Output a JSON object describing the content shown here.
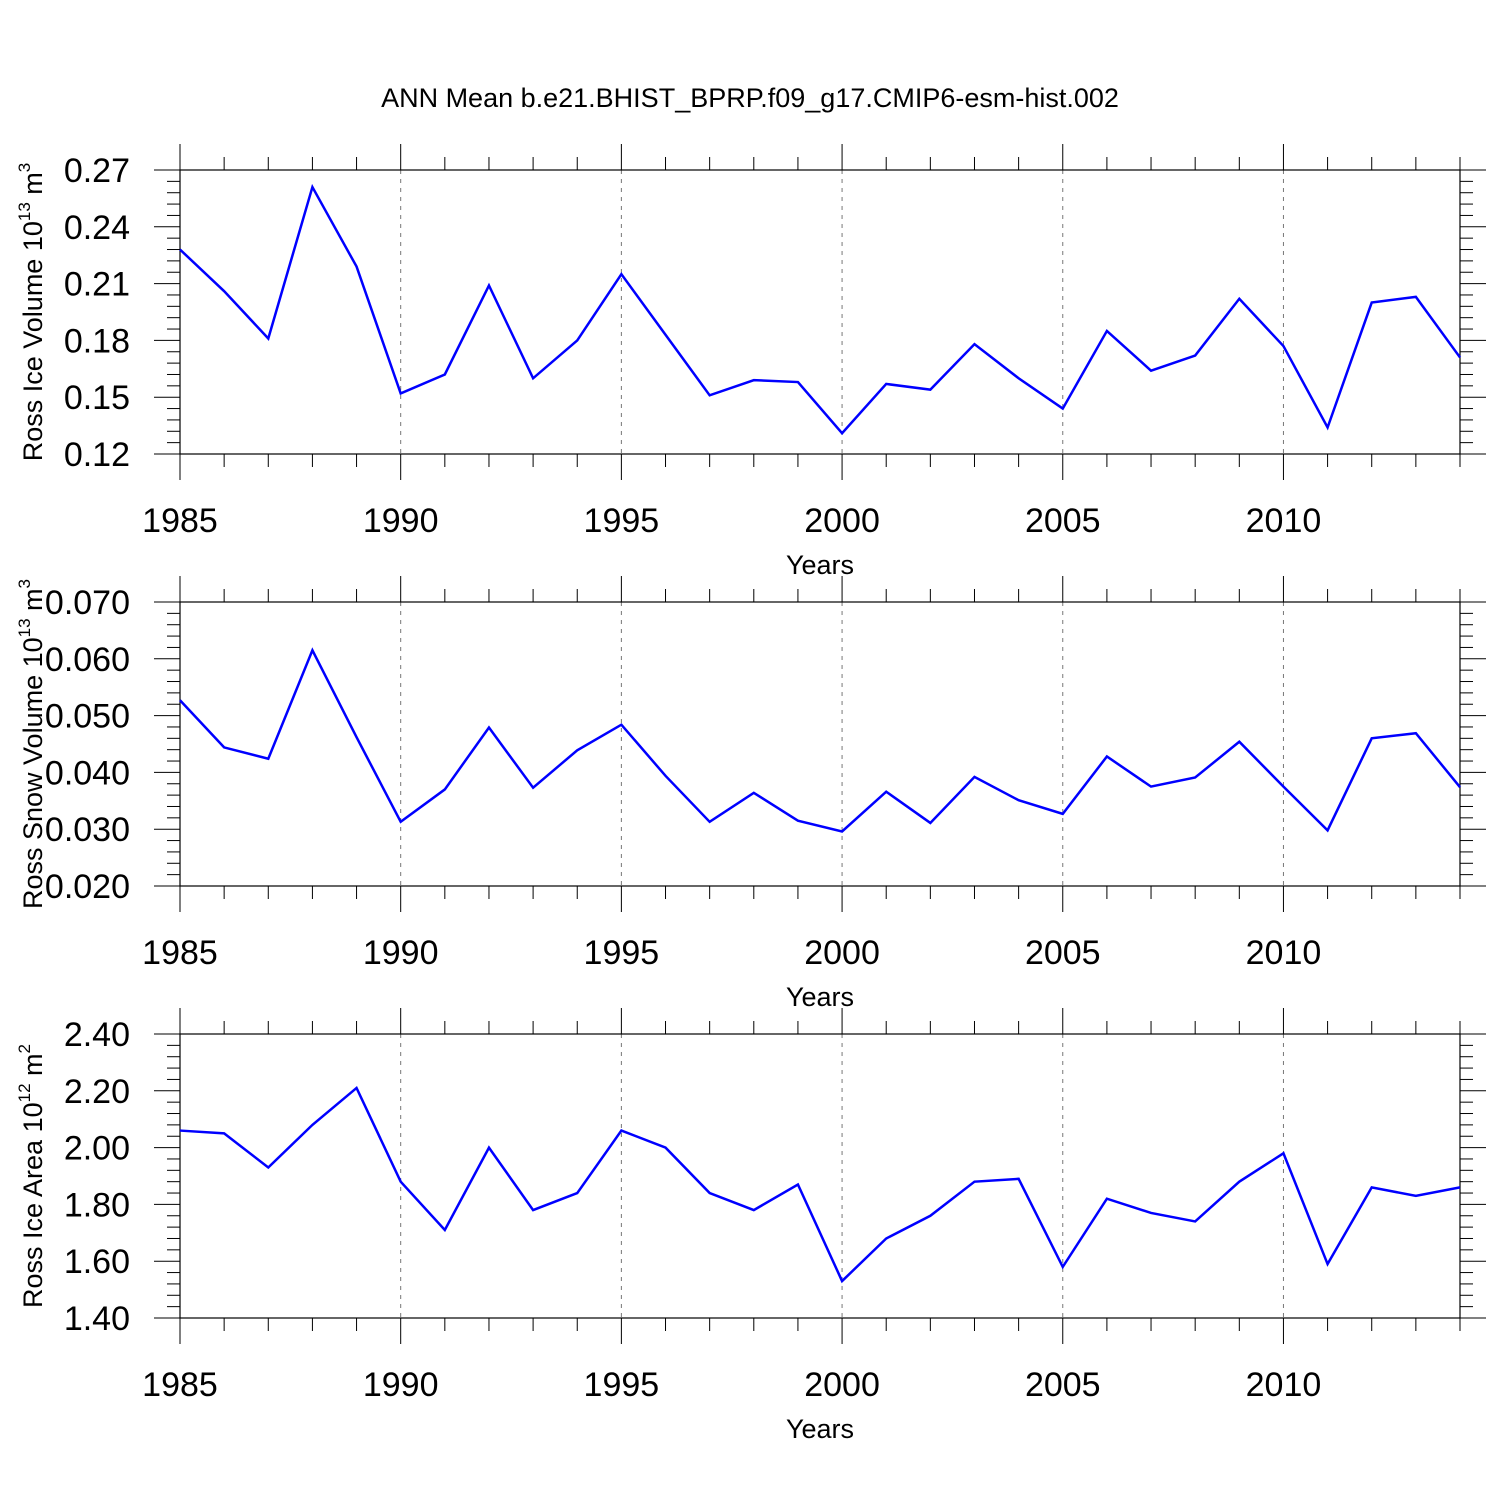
{
  "figure_title": "ANN Mean b.e21.BHIST_BPRP.f09_g17.CMIP6-esm-hist.002",
  "chart_data": [
    {
      "type": "line",
      "title": "",
      "xlabel": "Years",
      "ylabel": {
        "main": "Ross Ice Volume 10",
        "exp": "13",
        "unit": " m",
        "unit_exp": "3"
      },
      "xlim": [
        1985,
        2014
      ],
      "ylim": [
        0.12,
        0.27
      ],
      "x_ticks": [
        "1985",
        "1990",
        "1995",
        "2000",
        "2005",
        "2010"
      ],
      "y_ticks": [
        "0.27",
        "0.24",
        "0.21",
        "0.18",
        "0.15",
        "0.12"
      ],
      "grid": "dashed vertical at major x ticks",
      "color": "#0000ff",
      "x": [
        1985,
        1986,
        1987,
        1988,
        1989,
        1990,
        1991,
        1992,
        1993,
        1994,
        1995,
        1996,
        1997,
        1998,
        1999,
        2000,
        2001,
        2002,
        2003,
        2004,
        2005,
        2006,
        2007,
        2008,
        2009,
        2010,
        2011,
        2012,
        2013,
        2014
      ],
      "values": [
        0.228,
        0.206,
        0.181,
        0.261,
        0.219,
        0.152,
        0.162,
        0.209,
        0.16,
        0.18,
        0.215,
        0.183,
        0.151,
        0.159,
        0.158,
        0.131,
        0.157,
        0.154,
        0.178,
        0.16,
        0.144,
        0.185,
        0.164,
        0.172,
        0.202,
        0.177,
        0.134,
        0.2,
        0.203,
        0.171
      ]
    },
    {
      "type": "line",
      "title": "",
      "xlabel": "Years",
      "ylabel": {
        "main": "Ross Snow Volume 10",
        "exp": "13",
        "unit": " m",
        "unit_exp": "3"
      },
      "xlim": [
        1985,
        2014
      ],
      "ylim": [
        0.02,
        0.07
      ],
      "x_ticks": [
        "1985",
        "1990",
        "1995",
        "2000",
        "2005",
        "2010"
      ],
      "y_ticks": [
        "0.070",
        "0.060",
        "0.050",
        "0.040",
        "0.030",
        "0.020"
      ],
      "grid": "dashed vertical at major x ticks",
      "color": "#0000ff",
      "x": [
        1985,
        1986,
        1987,
        1988,
        1989,
        1990,
        1991,
        1992,
        1993,
        1994,
        1995,
        1996,
        1997,
        1998,
        1999,
        2000,
        2001,
        2002,
        2003,
        2004,
        2005,
        2006,
        2007,
        2008,
        2009,
        2010,
        2011,
        2012,
        2013,
        2014
      ],
      "values": [
        0.0527,
        0.0444,
        0.0424,
        0.0615,
        0.0462,
        0.0313,
        0.037,
        0.0479,
        0.0373,
        0.0439,
        0.0484,
        0.0394,
        0.0313,
        0.0364,
        0.0315,
        0.0296,
        0.0366,
        0.0311,
        0.0392,
        0.0351,
        0.0327,
        0.0428,
        0.0375,
        0.0391,
        0.0454,
        0.0375,
        0.0298,
        0.046,
        0.0469,
        0.0374
      ]
    },
    {
      "type": "line",
      "title": "",
      "xlabel": "Years",
      "ylabel": {
        "main": "Ross Ice Area 10",
        "exp": "12",
        "unit": " m",
        "unit_exp": "2"
      },
      "xlim": [
        1985,
        2014
      ],
      "ylim": [
        1.4,
        2.4
      ],
      "x_ticks": [
        "1985",
        "1990",
        "1995",
        "2000",
        "2005",
        "2010"
      ],
      "y_ticks": [
        "2.40",
        "2.20",
        "2.00",
        "1.80",
        "1.60",
        "1.40"
      ],
      "grid": "dashed vertical at major x ticks",
      "color": "#0000ff",
      "x": [
        1985,
        1986,
        1987,
        1988,
        1989,
        1990,
        1991,
        1992,
        1993,
        1994,
        1995,
        1996,
        1997,
        1998,
        1999,
        2000,
        2001,
        2002,
        2003,
        2004,
        2005,
        2006,
        2007,
        2008,
        2009,
        2010,
        2011,
        2012,
        2013,
        2014
      ],
      "values": [
        2.06,
        2.05,
        1.93,
        2.08,
        2.21,
        1.88,
        1.71,
        2.0,
        1.78,
        1.84,
        2.06,
        2.0,
        1.84,
        1.78,
        1.87,
        1.53,
        1.68,
        1.76,
        1.88,
        1.89,
        1.58,
        1.82,
        1.77,
        1.74,
        1.88,
        1.98,
        1.59,
        1.86,
        1.83,
        1.86
      ]
    }
  ]
}
